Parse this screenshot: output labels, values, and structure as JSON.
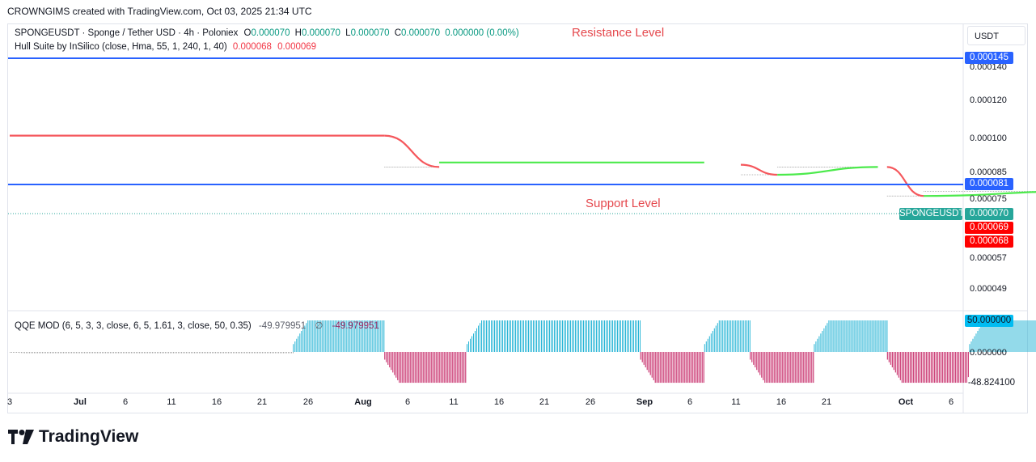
{
  "header": {
    "text": "CROWNGIMS created with TradingView.com, Oct 03, 2025 21:34 UTC"
  },
  "legend": {
    "symbol": "SPONGEUSDT · Sponge / Tether USD · 4h · Poloniex",
    "o_label": "O",
    "o_value": "0.000070",
    "h_label": "H",
    "h_value": "0.000070",
    "l_label": "L",
    "l_value": "0.000070",
    "c_label": "C",
    "c_value": "0.000070",
    "change": "0.000000 (0.00%)",
    "indicator": "Hull Suite by InSilico (close, Hma, 55, 1, 240, 1, 40)",
    "ind_val1": "0.000068",
    "ind_val2": "0.000069",
    "qqe": "QQE MOD (6, 5, 3, 3, close, 6, 5, 1.61, 3, close, 50, 0.35)",
    "qqe_v1": "-49.979951",
    "qqe_sym": "∅",
    "qqe_v2": "-49.979951"
  },
  "annotations": {
    "resistance": "Resistance Level",
    "support": "Support Level"
  },
  "currency_button": "USDT",
  "price_tags": {
    "resistance": "0.000145",
    "support": "0.000081",
    "symbol": "SPONGEUSDT",
    "last": "0.000070",
    "hull1": "0.000069",
    "hull2": "0.000068",
    "qqe_top": "50.000000",
    "qqe_bottom": "-48.824100"
  },
  "colors": {
    "level_line": "#2962ff",
    "hull_up": "#4cea4c",
    "hull_down": "#f5575c",
    "qqe_up": "#27b5d6",
    "qqe_down": "#c2185b",
    "qqe_neutral": "#a8a8a8",
    "tag_teal": "#26a69a",
    "tag_red": "#ff0000",
    "tag_blue": "#2962ff",
    "tag_cyan": "#00bcf2"
  },
  "chart_data": [
    {
      "type": "line",
      "title": "SPONGEUSDT · Sponge / Tether USD · 4h · Poloniex",
      "y_ticks": [
        "0.000140",
        "0.000120",
        "0.000100",
        "0.000085",
        "0.000075",
        "0.000057",
        "0.000049"
      ],
      "x_ticks": [
        "3",
        "Jul",
        "6",
        "11",
        "16",
        "21",
        "26",
        "Aug",
        "6",
        "11",
        "16",
        "21",
        "26",
        "Sep",
        "6",
        "11",
        "16",
        "21",
        "Oct",
        "6"
      ],
      "levels": [
        {
          "name": "Resistance Level",
          "value": 0.000145
        },
        {
          "name": "Support Level",
          "value": 8.1e-05
        }
      ],
      "last_price": 7e-05,
      "hull_trend": [
        {
          "segment": "Jun 3 – Jul 16",
          "direction": "flat",
          "value": 0.000101
        },
        {
          "segment": "Jul 16 – Jul 22",
          "direction": "down",
          "from": 0.000101,
          "to": 8.7e-05
        },
        {
          "segment": "Jul 22 – Aug 20",
          "direction": "up",
          "value": 8.9e-05
        },
        {
          "segment": "Aug 24 – Aug 28",
          "direction": "down",
          "from": 8.8e-05,
          "to": 8.4e-05
        },
        {
          "segment": "Aug 28 – Sep 8",
          "direction": "up",
          "from": 8.4e-05,
          "to": 8.7e-05
        },
        {
          "segment": "Sep 9 – Sep 13",
          "direction": "down",
          "from": 8.7e-05,
          "to": 7.6e-05
        },
        {
          "segment": "Sep 13 – Sep 30",
          "direction": "up",
          "from": 7.6e-05,
          "to": 7.8e-05
        },
        {
          "segment": "Sep 30 – Oct 3",
          "direction": "down",
          "from": 7.8e-05,
          "to": 6.9e-05
        }
      ]
    },
    {
      "type": "bar",
      "title": "QQE MOD (6, 5, 3, 3, close, 6, 5, 1.61, 3, close, 50, 0.35)",
      "y_ticks": [
        "50.000000",
        "0.000000",
        "-48.824100"
      ],
      "phases": [
        {
          "from": "Jun 3",
          "to": "Jul 6",
          "value": -2,
          "color": "neutral"
        },
        {
          "from": "Jul 6",
          "to": "Jul 16",
          "value": 50,
          "color": "up"
        },
        {
          "from": "Jul 16",
          "to": "Jul 25",
          "value": -48.8,
          "color": "down"
        },
        {
          "from": "Jul 25",
          "to": "Aug 13",
          "value": 50,
          "color": "up"
        },
        {
          "from": "Aug 13",
          "to": "Aug 20",
          "value": -48.8,
          "color": "down"
        },
        {
          "from": "Aug 20",
          "to": "Aug 25",
          "value": 50,
          "color": "up"
        },
        {
          "from": "Aug 25",
          "to": "Sep 1",
          "value": -48.8,
          "color": "down"
        },
        {
          "from": "Sep 1",
          "to": "Sep 9",
          "value": 50,
          "color": "up"
        },
        {
          "from": "Sep 9",
          "to": "Sep 18",
          "value": -48.8,
          "color": "down"
        },
        {
          "from": "Sep 18",
          "to": "Sep 30",
          "value": 50,
          "color": "up"
        },
        {
          "from": "Sep 30",
          "to": "Oct 3",
          "value": -48.8,
          "color": "down"
        }
      ]
    }
  ]
}
